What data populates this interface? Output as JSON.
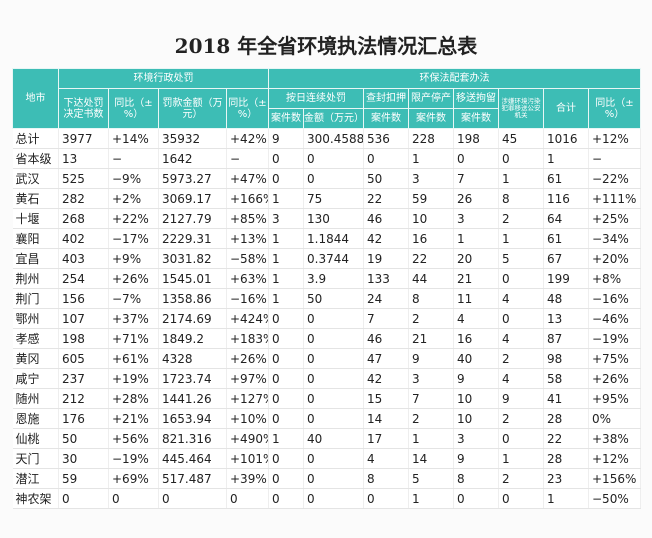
{
  "header": {
    "title": "2018 年全省环境执法情况汇总表",
    "row1": [
      "地市",
      "环境行政处罚",
      "环保法配套办法"
    ],
    "row2": [
      "下达处罚决定书数",
      "同比（±%）",
      "罚款金额（万元）",
      "同比（±%）",
      "按日连续处罚",
      "查封扣押",
      "限产停产",
      "移送拘留",
      "涉嫌环境污染犯罪移送公安机关",
      "合计",
      "同比（±%）"
    ],
    "row3": [
      "案件数",
      "金额（万元）",
      "案件数",
      "案件数",
      "案件数"
    ]
  },
  "table": {
    "rows": [
      [
        "总计",
        "3977",
        "+14%",
        "35932",
        "+42%",
        "9",
        "300.4588",
        "536",
        "228",
        "198",
        "45",
        "1016",
        "+12%"
      ],
      [
        "省本级",
        "13",
        "−",
        "1642",
        "−",
        "0",
        "0",
        "0",
        "1",
        "0",
        "0",
        "1",
        "−"
      ],
      [
        "武汉",
        "525",
        "−9%",
        "5973.27",
        "+47%",
        "0",
        "0",
        "50",
        "3",
        "7",
        "1",
        "61",
        "−22%"
      ],
      [
        "黄石",
        "282",
        "+2%",
        "3069.17",
        "+166%",
        "1",
        "75",
        "22",
        "59",
        "26",
        "8",
        "116",
        "+111%"
      ],
      [
        "十堰",
        "268",
        "+22%",
        "2127.79",
        "+85%",
        "3",
        "130",
        "46",
        "10",
        "3",
        "2",
        "64",
        "+25%"
      ],
      [
        "襄阳",
        "402",
        "−17%",
        "2229.31",
        "+13%",
        "1",
        "1.1844",
        "42",
        "16",
        "1",
        "1",
        "61",
        "−34%"
      ],
      [
        "宜昌",
        "403",
        "+9%",
        "3031.82",
        "−58%",
        "1",
        "0.3744",
        "19",
        "22",
        "20",
        "5",
        "67",
        "+20%"
      ],
      [
        "荆州",
        "254",
        "+26%",
        "1545.01",
        "+63%",
        "1",
        "3.9",
        "133",
        "44",
        "21",
        "0",
        "199",
        "+8%"
      ],
      [
        "荆门",
        "156",
        "−7%",
        "1358.86",
        "−16%",
        "1",
        "50",
        "24",
        "8",
        "11",
        "4",
        "48",
        "−16%"
      ],
      [
        "鄂州",
        "107",
        "+37%",
        "2174.69",
        "+424%",
        "0",
        "0",
        "7",
        "2",
        "4",
        "0",
        "13",
        "−46%"
      ],
      [
        "孝感",
        "198",
        "+71%",
        "1849.2",
        "+183%",
        "0",
        "0",
        "46",
        "21",
        "16",
        "4",
        "87",
        "−19%"
      ],
      [
        "黄冈",
        "605",
        "+61%",
        "4328",
        "+26%",
        "0",
        "0",
        "47",
        "9",
        "40",
        "2",
        "98",
        "+75%"
      ],
      [
        "咸宁",
        "237",
        "+19%",
        "1723.74",
        "+97%",
        "0",
        "0",
        "42",
        "3",
        "9",
        "4",
        "58",
        "+26%"
      ],
      [
        "随州",
        "212",
        "+28%",
        "1441.26",
        "+127%",
        "0",
        "0",
        "15",
        "7",
        "10",
        "9",
        "41",
        "+95%"
      ],
      [
        "恩施",
        "176",
        "+21%",
        "1653.94",
        "+10%",
        "0",
        "0",
        "14",
        "2",
        "10",
        "2",
        "28",
        "0%"
      ],
      [
        "仙桃",
        "50",
        "+56%",
        "821.316",
        "+490%",
        "1",
        "40",
        "17",
        "1",
        "3",
        "0",
        "22",
        "+38%"
      ],
      [
        "天门",
        "30",
        "−19%",
        "445.464",
        "+101%",
        "0",
        "0",
        "4",
        "14",
        "9",
        "1",
        "28",
        "+12%"
      ],
      [
        "潜江",
        "59",
        "+69%",
        "517.487",
        "+39%",
        "0",
        "0",
        "8",
        "5",
        "8",
        "2",
        "23",
        "+156%"
      ],
      [
        "神农架",
        "0",
        "0",
        "0",
        "0",
        "0",
        "0",
        "0",
        "1",
        "0",
        "0",
        "1",
        "−50%"
      ]
    ]
  }
}
